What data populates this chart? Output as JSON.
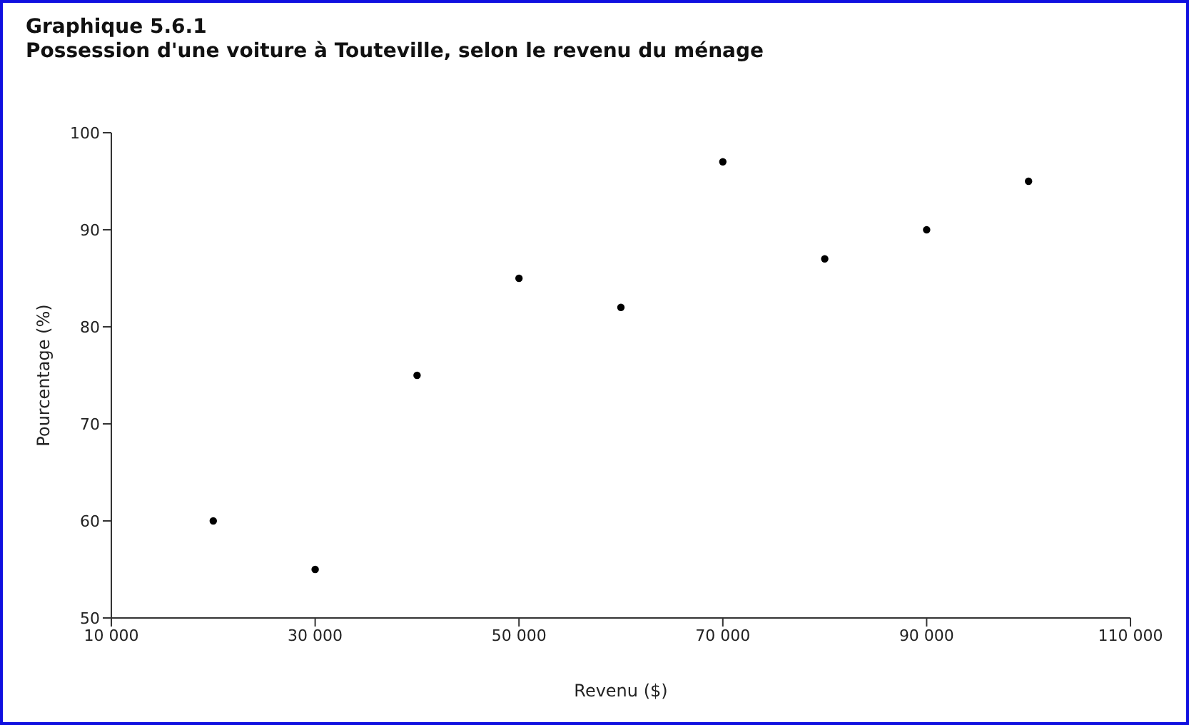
{
  "chart_data": {
    "type": "scatter",
    "title": "Graphique 5.6.1",
    "subtitle": "Possession d'une voiture à Touteville, selon le revenu du ménage",
    "xlabel": "Revenu ($)",
    "ylabel": "Pourcentage (%)",
    "x": [
      20000,
      30000,
      40000,
      50000,
      60000,
      70000,
      80000,
      90000,
      100000
    ],
    "values": [
      60,
      55,
      75,
      85,
      82,
      97,
      87,
      90,
      95
    ],
    "color": "#000000",
    "marker": "circle",
    "xlim": [
      10000,
      110000
    ],
    "xticks": [
      {
        "value": 10000,
        "label": "10 000"
      },
      {
        "value": 30000,
        "label": "30 000"
      },
      {
        "value": 50000,
        "label": "50 000"
      },
      {
        "value": 70000,
        "label": "70 000"
      },
      {
        "value": 90000,
        "label": "90 000"
      },
      {
        "value": 110000,
        "label": "110 000"
      }
    ],
    "ylim": [
      50,
      100
    ],
    "yticks": [
      50,
      60,
      70,
      80,
      90,
      100
    ]
  }
}
